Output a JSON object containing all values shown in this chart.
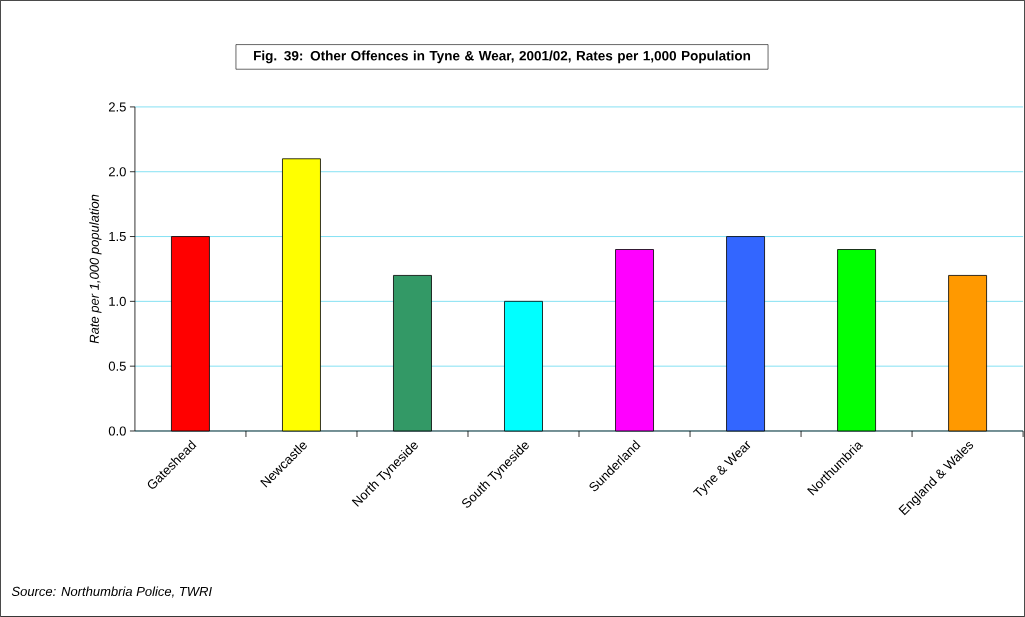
{
  "chart_data": {
    "type": "bar",
    "title": "Fig. 39: Other Offences in Tyne & Wear, 2001/02, Rates per 1,000 Population",
    "ylabel": "Rate per 1,000 population",
    "categories": [
      "Gateshead",
      "Newcastle",
      "North Tyneside",
      "South Tyneside",
      "Sunderland",
      "Tyne & Wear",
      "Northumbria",
      "England & Wales"
    ],
    "values": [
      1.5,
      2.1,
      1.2,
      1.0,
      1.4,
      1.5,
      1.4,
      1.2
    ],
    "colors": [
      "#ff0000",
      "#ffff00",
      "#339966",
      "#00ffff",
      "#ff00ff",
      "#3366ff",
      "#00ff00",
      "#ff9900"
    ],
    "ylim": [
      0,
      2.5
    ],
    "yticks": [
      {
        "value": 0,
        "label": "0.0"
      },
      {
        "value": 0.5,
        "label": "0.5"
      },
      {
        "value": 1,
        "label": "1.0"
      },
      {
        "value": 1.5,
        "label": "1.5"
      },
      {
        "value": 2,
        "label": "2.0"
      },
      {
        "value": 2.5,
        "label": "2.5"
      }
    ],
    "grid": "y",
    "annotations": [
      "Source: Northumbria Police, TWRI"
    ]
  }
}
